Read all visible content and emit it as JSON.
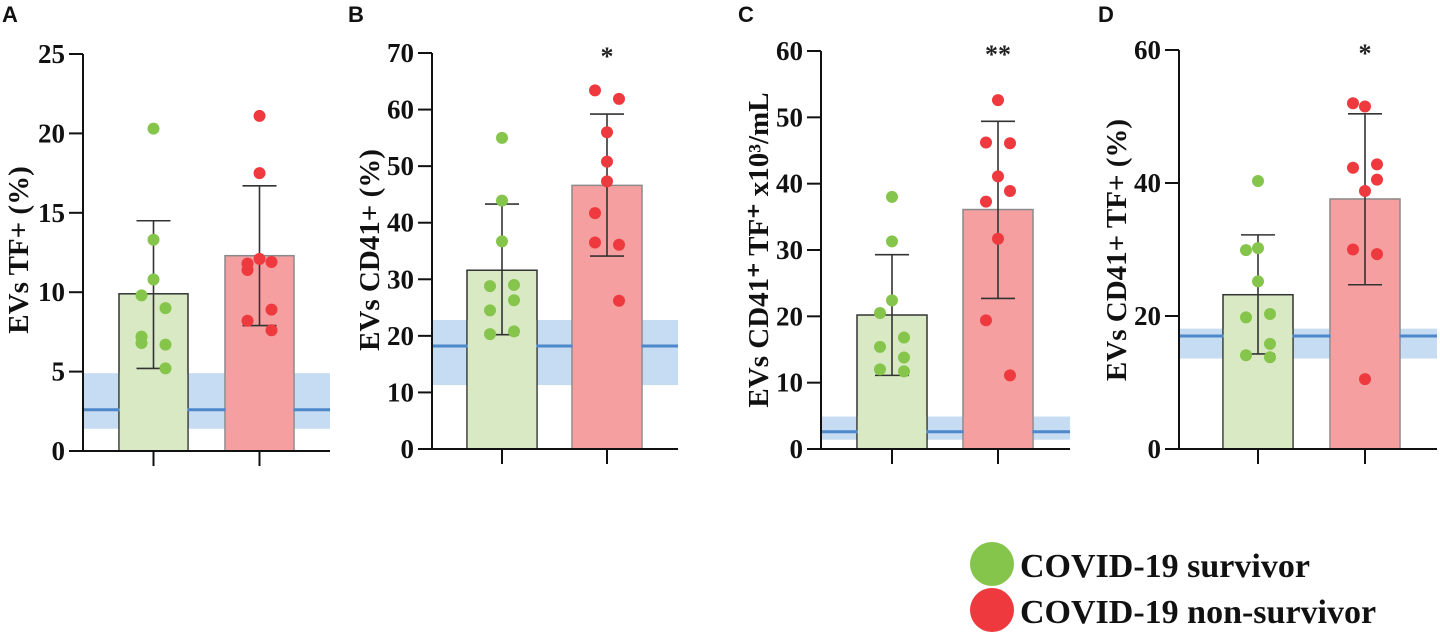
{
  "colors": {
    "survivor_point": "#86c54c",
    "survivor_bar": "#d8e9c4",
    "nonsurvivor_point": "#ee3a3e",
    "nonsurvivor_bar": "#f59fa1",
    "reference_band": "#c6dcf2",
    "reference_line": "#4f87cb"
  },
  "legend": [
    {
      "label": "COVID-19 survivor"
    },
    {
      "label": "COVID-19 non-survivor"
    }
  ],
  "chart_data": [
    {
      "type": "bar",
      "panel": "A",
      "ylabel": "EVs TF+ (%)",
      "ylim": [
        0,
        25
      ],
      "yticks": [
        "0",
        "5",
        "10",
        "15",
        "20",
        "25"
      ],
      "significance": "",
      "reference": {
        "line": 2.6,
        "band": [
          1.4,
          4.9
        ]
      },
      "series": [
        {
          "name": "COVID-19 survivor",
          "mean": 9.9,
          "error": [
            5.2,
            14.5
          ],
          "points": [
            20.3,
            13.3,
            10.8,
            9.8,
            9.0,
            7.2,
            6.7,
            6.8,
            5.2
          ]
        },
        {
          "name": "COVID-19 non-survivor",
          "mean": 12.3,
          "error": [
            7.9,
            16.7
          ],
          "points": [
            21.1,
            17.5,
            12.1,
            11.4,
            11.9,
            11.8,
            8.9,
            8.2,
            7.6
          ]
        }
      ]
    },
    {
      "type": "bar",
      "panel": "B",
      "ylabel": "EVs CD41+ (%)",
      "ylim": [
        0,
        70
      ],
      "yticks": [
        "0",
        "10",
        "20",
        "30",
        "40",
        "50",
        "60",
        "70"
      ],
      "significance": "*",
      "reference": {
        "line": 18.2,
        "band": [
          11.3,
          22.8
        ]
      },
      "series": [
        {
          "name": "COVID-19 survivor",
          "mean": 31.6,
          "error": [
            20.2,
            43.3
          ],
          "points": [
            55.0,
            43.9,
            36.7,
            28.8,
            29.0,
            24.5,
            26.3,
            20.3,
            20.8
          ]
        },
        {
          "name": "COVID-19 non-survivor",
          "mean": 46.6,
          "error": [
            34.1,
            59.2
          ],
          "points": [
            56.0,
            50.8,
            47.3,
            41.7,
            26.2,
            63.4,
            61.9,
            36.5,
            36.1
          ]
        }
      ]
    },
    {
      "type": "bar",
      "panel": "C",
      "ylabel": "EVs CD41⁺ TF⁺ x10³/mL",
      "ylim": [
        0,
        60
      ],
      "yticks": [
        "0",
        "10",
        "20",
        "30",
        "40",
        "50",
        "60"
      ],
      "significance": "**",
      "reference": {
        "line": 2.6,
        "band": [
          1.4,
          4.9
        ]
      },
      "series": [
        {
          "name": "COVID-19 survivor",
          "mean": 20.2,
          "error": [
            11.1,
            29.3
          ],
          "points": [
            38.0,
            31.3,
            22.4,
            20.5,
            16.8,
            15.4,
            13.8,
            12.0,
            11.7
          ]
        },
        {
          "name": "COVID-19 non-survivor",
          "mean": 36.1,
          "error": [
            22.7,
            49.4
          ],
          "points": [
            52.6,
            41.1,
            31.7,
            19.4,
            46.1,
            46.2,
            38.9,
            37.3,
            11.1
          ]
        }
      ]
    },
    {
      "type": "bar",
      "panel": "D",
      "ylabel": "EVs CD41+ TF+ (%)",
      "ylim": [
        0,
        60
      ],
      "yticks": [
        "0",
        "20",
        "40",
        "60"
      ],
      "significance": "*",
      "reference": {
        "line": 17.0,
        "band": [
          13.6,
          18.1
        ]
      },
      "series": [
        {
          "name": "COVID-19 survivor",
          "mean": 23.2,
          "error": [
            14.3,
            32.2
          ],
          "points": [
            40.3,
            25.2,
            30.2,
            29.9,
            20.3,
            19.8,
            15.8,
            14.1,
            13.8
          ]
        },
        {
          "name": "COVID-19 non-survivor",
          "mean": 37.6,
          "error": [
            24.7,
            50.4
          ],
          "points": [
            38.8,
            10.5,
            51.5,
            52.0,
            42.8,
            42.3,
            40.5,
            30.0,
            29.3
          ]
        }
      ]
    }
  ]
}
